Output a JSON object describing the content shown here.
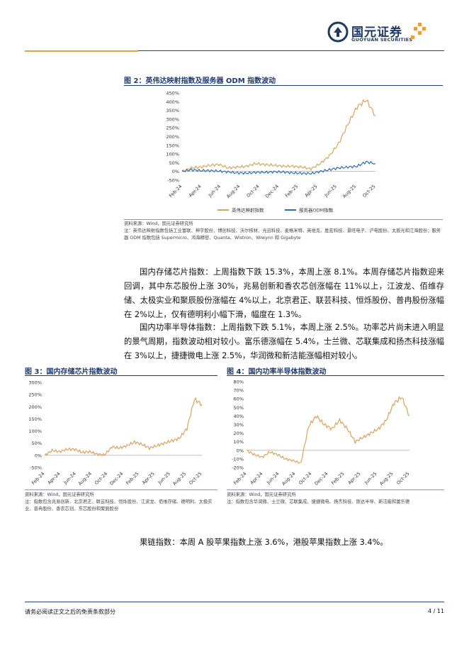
{
  "header": {
    "logo_cn": "国元证券",
    "logo_en": "GUOYUAN SECURITIES"
  },
  "figure2": {
    "title": "图 2：英伟达映射指数及服务器 ODM 指数波动",
    "source": "资料来源：Wind，国元证券研究所",
    "note": "注：英伟达映射指数包括工业富联、神宇股份、博创科技、沃尔核材、光迅科技、麦格米特、英维克、胜宏科技、景旺电子、沪电股份、太辰光和江海股份；服务器 ODM 指数包括 Supermicro、鸿海精密、Quanta、Wistron、Wiwynn 和 Gigabyte"
  },
  "paragraphs": {
    "p1": "国内存储芯片指数：上周指数下跌 15.3%，本周上涨 8.1%。本周存储芯片指数迎来回调，其中东芯股份上涨 30%，兆易创新和香农芯创涨幅在 11%以上，江波龙、佰维存储、太极实业和聚辰股份涨幅在 4%以上，北京君正、联芸科技、恒烁股份、普冉股份涨幅在 2%以上，仅有德明利小幅下滑，幅度在 1.3%。",
    "p2": "国内功率半导体指数：上周指数下跌 5.1%，本周上涨 2.5%。功率芯片尚未进入明显的景气周期，指数波动相对较小。富乐德涨幅在 5.4%，士兰微、芯联集成和扬杰科技涨幅在 3%以上，捷捷微电上涨 2.5%，华润微和新洁能涨幅相对较小。",
    "p3": "果链指数：本周 A 股苹果指数上涨 3.6%，港股苹果指数上涨 3.4%。"
  },
  "figure3": {
    "title": "图 3：国内存储芯片指数波动",
    "source": "资料来源：Wind，国元证券研究所",
    "note": "注：指数包含兆易创新、北京君正、联芸科技、恒烁股份、江波龙、佰维存储、德明利、太极实业、普冉股份、香农芯创、东芯股份和聚辰股份"
  },
  "figure4": {
    "title": "图 4：国内功率半导体指数波动",
    "source": "资料来源：Wind，国元证券研究所",
    "note": "注：指数包含华润微、士兰微、芯联集成、捷捷微电、扬杰科技、斯达半导、新洁能和富乐德"
  },
  "footer": {
    "disclaimer": "请务必阅读正文之后的免责条款部分",
    "page": "4 / 11"
  },
  "chart_data": [
    {
      "type": "line",
      "id": "fig2",
      "x": [
        "2024-02",
        "2024-03",
        "2024-04",
        "2024-05",
        "2024-06",
        "2024-07",
        "2024-08",
        "2024-09",
        "2024-10",
        "2024-11",
        "2024-12",
        "2025-01",
        "2025-02",
        "2025-03",
        "2025-04",
        "2025-05",
        "2025-06",
        "2025-07",
        "2025-08",
        "2025-09",
        "2025-10",
        "2025-11"
      ],
      "x_tick_labels": [
        "Feb-24",
        "Apr-24",
        "Jun-24",
        "Aug-24",
        "Oct-24",
        "Dec-24",
        "Feb-25",
        "Apr-25",
        "Jun-25",
        "Aug-25",
        "Oct-25"
      ],
      "ylim": [
        -50,
        450
      ],
      "y_ticks": [
        "-50%",
        "0%",
        "50%",
        "100%",
        "150%",
        "200%",
        "250%",
        "300%",
        "350%",
        "400%",
        "450%"
      ],
      "series": [
        {
          "name": "英伟达映射指数",
          "color": "#d9a35c",
          "values": [
            0,
            20,
            25,
            35,
            40,
            20,
            25,
            30,
            45,
            40,
            35,
            30,
            30,
            25,
            15,
            45,
            90,
            160,
            270,
            370,
            410,
            320
          ]
        },
        {
          "name": "服务器ODM指数",
          "color": "#2e6db4",
          "values": [
            0,
            10,
            5,
            5,
            2,
            -3,
            -8,
            -10,
            -5,
            -5,
            -2,
            -3,
            -8,
            -10,
            -12,
            0,
            10,
            20,
            25,
            30,
            55,
            45
          ]
        }
      ],
      "legend": "bottom"
    },
    {
      "type": "line",
      "id": "fig3",
      "x": [
        "2024-02",
        "2024-03",
        "2024-04",
        "2024-05",
        "2024-06",
        "2024-07",
        "2024-08",
        "2024-09",
        "2024-10",
        "2024-11",
        "2024-12",
        "2025-01",
        "2025-02",
        "2025-03",
        "2025-04",
        "2025-05",
        "2025-06",
        "2025-07",
        "2025-08",
        "2025-09",
        "2025-10",
        "2025-11"
      ],
      "x_tick_labels": [
        "Feb-24",
        "Apr-24",
        "Jun-24",
        "Aug-24",
        "Oct-24",
        "Dec-24",
        "Feb-25",
        "Apr-25",
        "Jun-25",
        "Aug-25",
        "Oct-25"
      ],
      "ylim": [
        -50,
        300
      ],
      "y_ticks": [
        "-50%",
        "0%",
        "50%",
        "100%",
        "150%",
        "200%",
        "250%",
        "300%"
      ],
      "series": [
        {
          "name": "",
          "color": "#d9a35c",
          "values": [
            0,
            20,
            15,
            25,
            25,
            12,
            15,
            5,
            2,
            35,
            30,
            40,
            55,
            45,
            30,
            40,
            50,
            60,
            70,
            110,
            230,
            210
          ]
        }
      ]
    },
    {
      "type": "line",
      "id": "fig4",
      "x": [
        "2024-02",
        "2024-03",
        "2024-04",
        "2024-05",
        "2024-06",
        "2024-07",
        "2024-08",
        "2024-09",
        "2024-10",
        "2024-11",
        "2024-12",
        "2025-01",
        "2025-02",
        "2025-03",
        "2025-04",
        "2025-05",
        "2025-06",
        "2025-07",
        "2025-08",
        "2025-09",
        "2025-10",
        "2025-11"
      ],
      "x_tick_labels": [
        "Feb-24",
        "Apr-24",
        "Jun-24",
        "Aug-24",
        "Oct-24",
        "Dec-24",
        "Feb-25",
        "Apr-25",
        "Jun-25",
        "Aug-25",
        "Oct-25"
      ],
      "ylim": [
        -20,
        80
      ],
      "y_ticks": [
        "-20%",
        "-10%",
        "0%",
        "10%",
        "20%",
        "30%",
        "40%",
        "50%",
        "60%",
        "70%",
        "80%"
      ],
      "series": [
        {
          "name": "",
          "color": "#d9a35c",
          "values": [
            0,
            -5,
            -8,
            -2,
            -5,
            -10,
            -12,
            -15,
            28,
            40,
            30,
            25,
            35,
            25,
            10,
            15,
            20,
            25,
            35,
            55,
            62,
            40
          ]
        }
      ]
    }
  ]
}
